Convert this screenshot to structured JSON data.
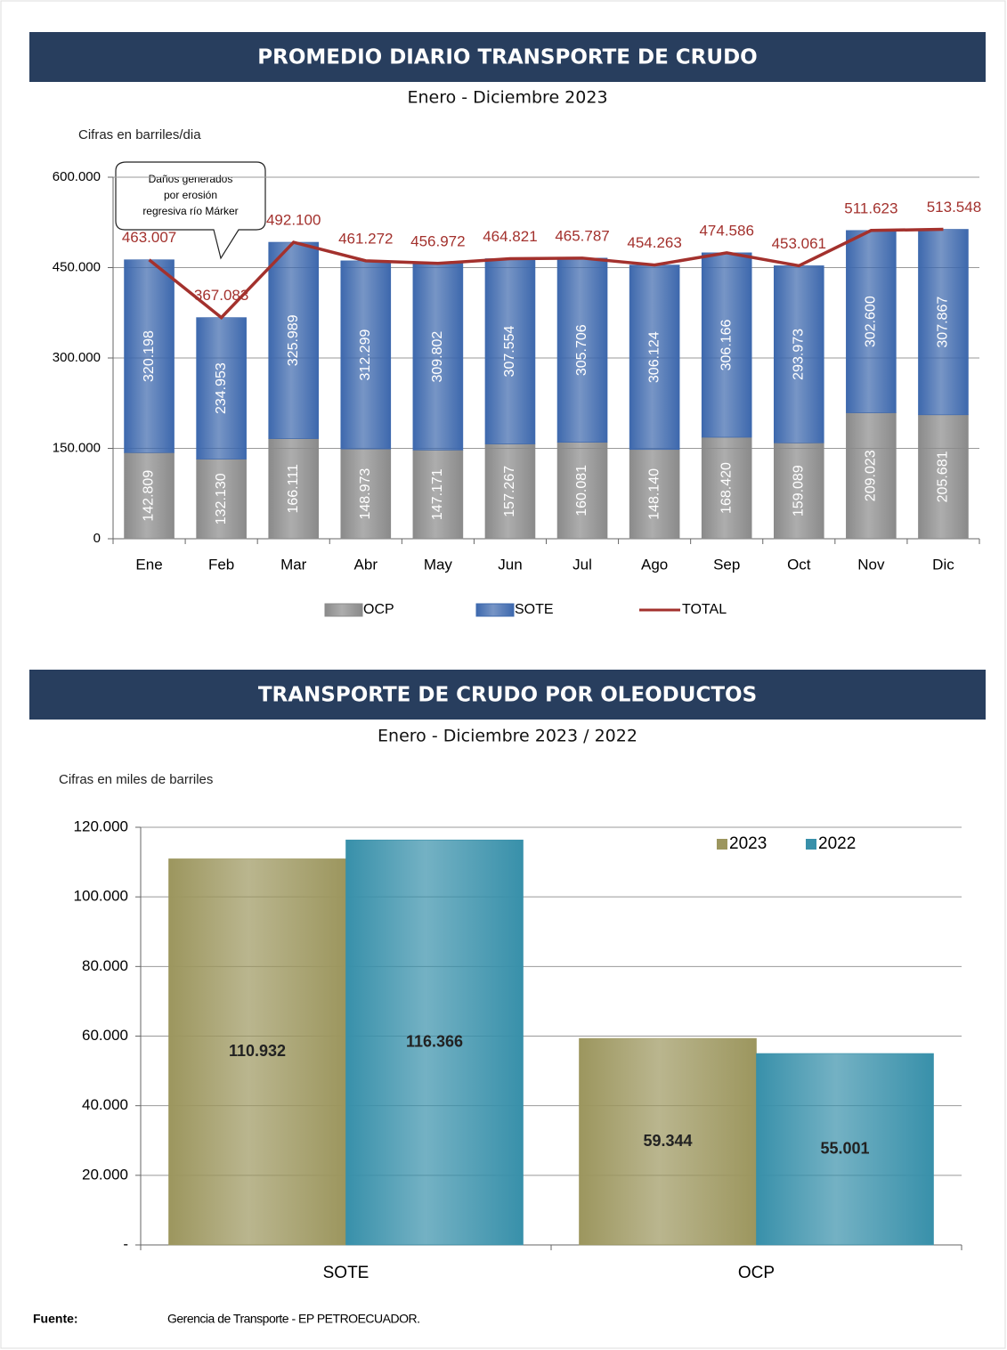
{
  "chart_data": [
    {
      "type": "bar",
      "stacked": true,
      "title": "PROMEDIO DIARIO TRANSPORTE DE CRUDO",
      "subtitle": "Enero - Diciembre 2023",
      "y_label": "Cifras en barriles/dia",
      "annotation": [
        "Daños generados",
        "por erosión",
        "regresiva  río Márker"
      ],
      "categories": [
        "Ene",
        "Feb",
        "Mar",
        "Abr",
        "May",
        "Jun",
        "Jul",
        "Ago",
        "Sep",
        "Oct",
        "Nov",
        "Dic"
      ],
      "series": [
        {
          "name": "OCP",
          "color": "#8a8a8a",
          "values": [
            142809,
            132130,
            166111,
            148973,
            147171,
            157267,
            160081,
            148140,
            168420,
            159089,
            209023,
            205681
          ],
          "value_labels": [
            "142.809",
            "132.130",
            "166.111",
            "148.973",
            "147.171",
            "157.267",
            "160.081",
            "148.140",
            "168.420",
            "159.089",
            "209.023",
            "205.681"
          ]
        },
        {
          "name": "SOTE",
          "color": "#3d68ad",
          "values": [
            320198,
            234953,
            325989,
            312299,
            309802,
            307554,
            305706,
            306124,
            306166,
            293973,
            302600,
            307867
          ],
          "value_labels": [
            "320.198",
            "234.953",
            "325.989",
            "312.299",
            "309.802",
            "307.554",
            "305.706",
            "306.124",
            "306.166",
            "293.973",
            "302.600",
            "307.867"
          ]
        },
        {
          "name": "TOTAL",
          "type": "line",
          "color": "#a3312d",
          "values": [
            463007,
            367083,
            492100,
            461272,
            456972,
            464821,
            465787,
            454263,
            474586,
            453061,
            511623,
            513548
          ],
          "value_labels": [
            "463.007",
            "367.083",
            "492.100",
            "461.272",
            "456.972",
            "464.821",
            "465.787",
            "454.263",
            "474.586",
            "453.061",
            "511.623",
            "513.548"
          ]
        }
      ],
      "ylim": [
        0,
        600000
      ],
      "yticks": [
        0,
        {
          "value": 150000,
          "label": "150.000"
        },
        {
          "value": 300000,
          "label": "300.000"
        },
        {
          "value": 450000,
          "label": "450.000"
        },
        {
          "value": 600000,
          "label": "600.000"
        }
      ],
      "grid": true,
      "legend": "bottom"
    },
    {
      "type": "bar",
      "title": "TRANSPORTE DE CRUDO POR OLEODUCTOS",
      "subtitle": "Enero - Diciembre 2023 / 2022",
      "y_label": "Cifras en miles de barriles",
      "categories": [
        "SOTE",
        "OCP"
      ],
      "series": [
        {
          "name": "2023",
          "color": "#9c965e",
          "values": [
            110932,
            59344
          ],
          "value_labels": [
            "110.932",
            "59.344"
          ]
        },
        {
          "name": "2022",
          "color": "#3890aa",
          "values": [
            116366,
            55001
          ],
          "value_labels": [
            "116.366",
            "55.001"
          ]
        }
      ],
      "ylim": [
        0,
        120000
      ],
      "yticks": [
        {
          "value": 0,
          "label": "-"
        },
        {
          "value": 20000,
          "label": "20.000"
        },
        {
          "value": 40000,
          "label": "40.000"
        },
        {
          "value": 60000,
          "label": "60.000"
        },
        {
          "value": 80000,
          "label": "80.000"
        },
        {
          "value": 100000,
          "label": "100.000"
        },
        {
          "value": 120000,
          "label": "120.000"
        }
      ],
      "grid": true,
      "legend": "upper right"
    }
  ],
  "source": {
    "label": "Fuente:",
    "text": "Gerencia de Transporte - EP PETROECUADOR."
  }
}
